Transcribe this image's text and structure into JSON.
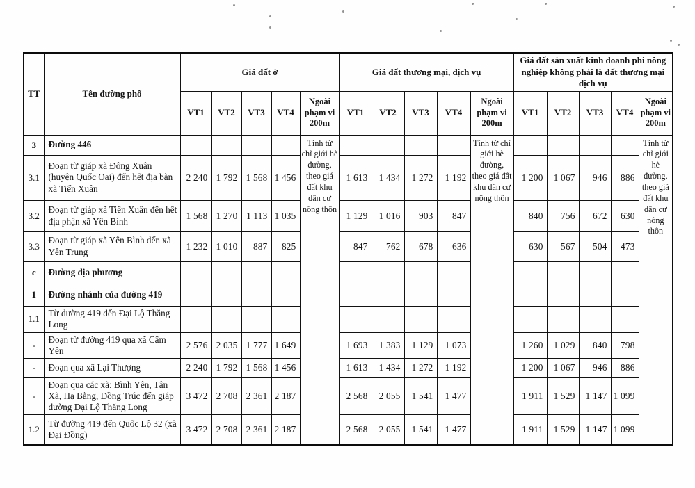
{
  "table": {
    "col_tt": "TT",
    "col_name": "Tên đường phố",
    "sections": [
      {
        "title": "Giá đất ở"
      },
      {
        "title": "Giá đất thương mại, dịch vụ"
      },
      {
        "title": "Giá đất sản xuất kinh doanh phi nông nghiệp không phải là đất thương mại dịch vụ"
      }
    ],
    "vt_headers": [
      "VT1",
      "VT2",
      "VT3",
      "VT4"
    ],
    "outside_header": "Ngoài phạm vi 200m",
    "outside_note": "Tính từ chỉ giới hè đường, theo giá đất khu dân cư nông thôn",
    "rows": [
      {
        "tt": "3",
        "name": "Đường 446",
        "bold": true,
        "res": [
          "",
          "",
          "",
          ""
        ],
        "com": [
          "",
          "",
          "",
          ""
        ],
        "prod": [
          "",
          "",
          "",
          ""
        ]
      },
      {
        "tt": "3.1",
        "name": "Đoạn từ giáp xã Đông Xuân (huyện Quốc Oai) đến hết địa bàn xã Tiến Xuân",
        "res": [
          "2 240",
          "1 792",
          "1 568",
          "1 456"
        ],
        "com": [
          "1 613",
          "1 434",
          "1 272",
          "1 192"
        ],
        "prod": [
          "1 200",
          "1 067",
          "946",
          "886"
        ]
      },
      {
        "tt": "3.2",
        "name": "Đoạn từ giáp xã Tiến Xuân đến hết địa phận xã Yên Bình",
        "res": [
          "1 568",
          "1 270",
          "1 113",
          "1 035"
        ],
        "com": [
          "1 129",
          "1 016",
          "903",
          "847"
        ],
        "prod": [
          "840",
          "756",
          "672",
          "630"
        ]
      },
      {
        "tt": "3.3",
        "name": "Đoạn từ giáp xã Yên Bình đến xã Yên Trung",
        "res": [
          "1 232",
          "1 010",
          "887",
          "825"
        ],
        "com": [
          "847",
          "762",
          "678",
          "636"
        ],
        "prod": [
          "630",
          "567",
          "504",
          "473"
        ]
      },
      {
        "tt": "c",
        "name": "Đường địa phương",
        "bold": true,
        "res": [
          "",
          "",
          "",
          ""
        ],
        "com": [
          "",
          "",
          "",
          ""
        ],
        "prod": [
          "",
          "",
          "",
          ""
        ]
      },
      {
        "tt": "1",
        "name": "Đường nhánh của đường 419",
        "bold": true,
        "res": [
          "",
          "",
          "",
          ""
        ],
        "com": [
          "",
          "",
          "",
          ""
        ],
        "prod": [
          "",
          "",
          "",
          ""
        ]
      },
      {
        "tt": "1.1",
        "name": "Từ đường 419 đến Đại Lộ Thăng Long",
        "res": [
          "",
          "",
          "",
          ""
        ],
        "com": [
          "",
          "",
          "",
          ""
        ],
        "prod": [
          "",
          "",
          "",
          ""
        ]
      },
      {
        "tt": "-",
        "name": "Đoạn từ đường 419 qua xã Cẩm Yên",
        "res": [
          "2 576",
          "2 035",
          "1 777",
          "1 649"
        ],
        "com": [
          "1 693",
          "1 383",
          "1 129",
          "1 073"
        ],
        "prod": [
          "1 260",
          "1 029",
          "840",
          "798"
        ]
      },
      {
        "tt": "-",
        "name": "Đoạn qua xã Lại Thượng",
        "res": [
          "2 240",
          "1 792",
          "1 568",
          "1 456"
        ],
        "com": [
          "1 613",
          "1 434",
          "1 272",
          "1 192"
        ],
        "prod": [
          "1 200",
          "1 067",
          "946",
          "886"
        ]
      },
      {
        "tt": "-",
        "name": "Đoạn qua các xã: Bình Yên, Tân Xã, Hạ Bằng, Đồng Trúc đến giáp đường Đại Lộ Thăng Long",
        "res": [
          "3 472",
          "2 708",
          "2 361",
          "2 187"
        ],
        "com": [
          "2 568",
          "2 055",
          "1 541",
          "1 477"
        ],
        "prod": [
          "1 911",
          "1 529",
          "1 147",
          "1 099"
        ]
      },
      {
        "tt": "1.2",
        "name": "Từ đường 419 đến Quốc Lộ 32 (xã Đại Đồng)",
        "res": [
          "3 472",
          "2 708",
          "2 361",
          "2 187"
        ],
        "com": [
          "2 568",
          "2 055",
          "1 541",
          "1 477"
        ],
        "prod": [
          "1 911",
          "1 529",
          "1 147",
          "1 099"
        ]
      }
    ]
  }
}
